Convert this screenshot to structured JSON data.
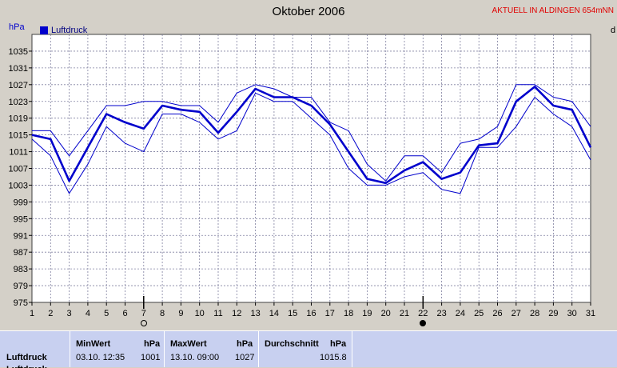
{
  "header": {
    "title": "Oktober 2006",
    "station": "AKTUELL IN ALDINGEN 654mNN",
    "unit_left": "hPa",
    "unit_right": "d"
  },
  "legend": {
    "label": "Luftdruck"
  },
  "moon_phases": [
    {
      "day": 7,
      "phase": "full-moon-icon"
    },
    {
      "day": 22,
      "phase": "new-moon-icon"
    }
  ],
  "chart_data": {
    "type": "line",
    "title": "Oktober 2006",
    "ylabel": "hPa",
    "x": [
      1,
      2,
      3,
      4,
      5,
      6,
      7,
      8,
      9,
      10,
      11,
      12,
      13,
      14,
      15,
      16,
      17,
      18,
      19,
      20,
      21,
      22,
      23,
      24,
      25,
      26,
      27,
      28,
      29,
      30,
      31
    ],
    "ylim": [
      975,
      1039
    ],
    "yticks": [
      975,
      979,
      983,
      987,
      991,
      995,
      999,
      1003,
      1007,
      1011,
      1015,
      1019,
      1023,
      1027,
      1031,
      1035
    ],
    "grid": true,
    "legend_position": "top-left",
    "series": [
      {
        "name": "Luftdruck",
        "role": "mean",
        "values": [
          1015,
          1014,
          1004,
          1012,
          1020,
          1018,
          1016.5,
          1022,
          1021,
          1020.5,
          1015.5,
          1020.5,
          1026,
          1024,
          1024,
          1022,
          1017.5,
          1011,
          1004.5,
          1003.5,
          1006.5,
          1008.5,
          1004.5,
          1006,
          1012.5,
          1013,
          1023,
          1026.5,
          1022,
          1021,
          1012
        ]
      },
      {
        "role": "max",
        "values": [
          1016,
          1016,
          1010,
          1016,
          1022,
          1022,
          1023,
          1023,
          1022,
          1022,
          1018,
          1025,
          1027,
          1026,
          1024,
          1024,
          1018,
          1016,
          1008,
          1004,
          1010,
          1010,
          1006,
          1013,
          1014,
          1017,
          1027,
          1027,
          1024,
          1023,
          1017
        ]
      },
      {
        "role": "min",
        "values": [
          1014,
          1010,
          1001,
          1008,
          1017,
          1013,
          1011,
          1020,
          1020,
          1018,
          1014,
          1016,
          1025,
          1023,
          1023,
          1019,
          1015,
          1007,
          1003,
          1003,
          1005,
          1006,
          1002,
          1001,
          1012,
          1012,
          1017,
          1024,
          1020,
          1017,
          1009
        ]
      }
    ]
  },
  "stats": {
    "row_label": "Luftdruck",
    "row_label_2": "Luftdruck",
    "min_header": "MinWert",
    "min_unit": "hPa",
    "min_date": "03.10.  12:35",
    "min_value": "1001",
    "max_header": "MaxWert",
    "max_unit": "hPa",
    "max_date": "13.10.  09:00",
    "max_value": "1027",
    "avg_header": "Durchschnitt",
    "avg_unit": "hPa",
    "avg_value": "1015.8"
  },
  "colors": {
    "background": "#d4d0c8",
    "plot_background": "#ffffff",
    "line": "#0000cc",
    "grid": "#8080a0",
    "title_red": "#e00000",
    "stats_background": "#c8d0f0"
  }
}
